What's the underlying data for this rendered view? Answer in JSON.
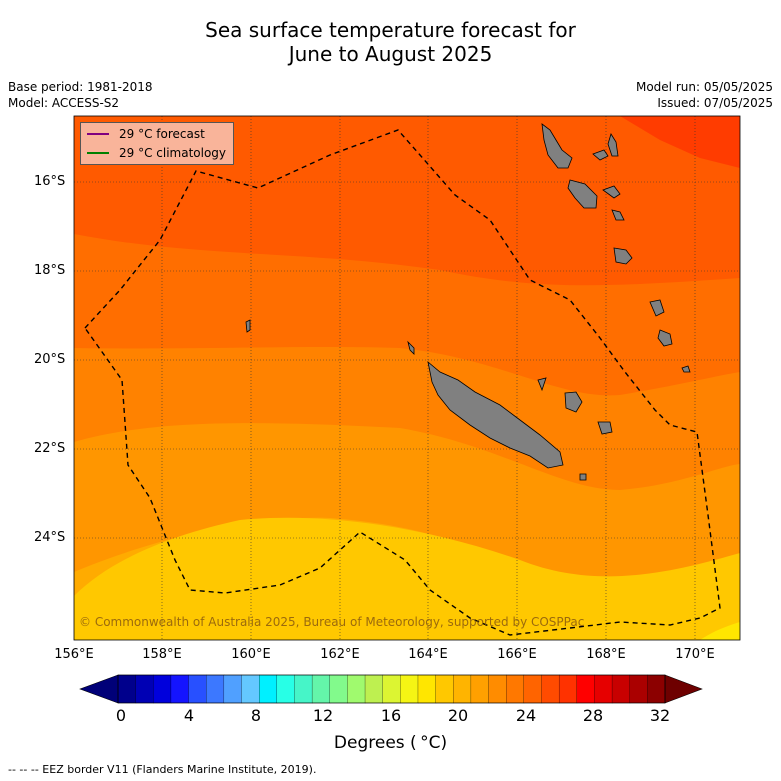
{
  "title_line1": "Sea surface temperature forecast for",
  "title_line2": "June to August 2025",
  "base_period": "Base period: 1981-2018",
  "model": "Model: ACCESS-S2",
  "model_run": "Model run: 05/05/2025",
  "issued": "Issued: 07/05/2025",
  "legend": {
    "forecast_label": "29 °C  forecast",
    "forecast_color": "#800080",
    "climatology_label": "29 °C  climatology",
    "climatology_color": "#008000"
  },
  "lat_labels": [
    "16°S",
    "18°S",
    "20°S",
    "22°S",
    "24°S"
  ],
  "lon_labels": [
    "156°E",
    "158°E",
    "160°E",
    "162°E",
    "164°E",
    "166°E",
    "168°E",
    "170°E"
  ],
  "copyright": "© Commonwealth of Australia 2025, Bureau of Meteorology, supported by COSPPac",
  "colorbar": {
    "ticks": [
      "0",
      "4",
      "8",
      "12",
      "16",
      "20",
      "24",
      "28",
      "32"
    ],
    "title": "Degrees ( °C)",
    "colors": [
      "#00008c",
      "#0000b4",
      "#0000dc",
      "#1414ff",
      "#2850ff",
      "#3c78ff",
      "#50a0ff",
      "#64c8ff",
      "#00f0ff",
      "#28ffe6",
      "#46f5c8",
      "#64f5aa",
      "#82fa8c",
      "#a0fa6e",
      "#bef050",
      "#dcf532",
      "#f5f514",
      "#ffe600",
      "#ffc800",
      "#ffb400",
      "#ffa000",
      "#ff8c00",
      "#ff7800",
      "#ff6400",
      "#ff4b00",
      "#ff3200",
      "#ff0000",
      "#e60000",
      "#c80000",
      "#aa0000",
      "#8c0000"
    ]
  },
  "footer": "--  --  -- EEZ border V11 (Flanders Marine Institute, 2019)."
}
